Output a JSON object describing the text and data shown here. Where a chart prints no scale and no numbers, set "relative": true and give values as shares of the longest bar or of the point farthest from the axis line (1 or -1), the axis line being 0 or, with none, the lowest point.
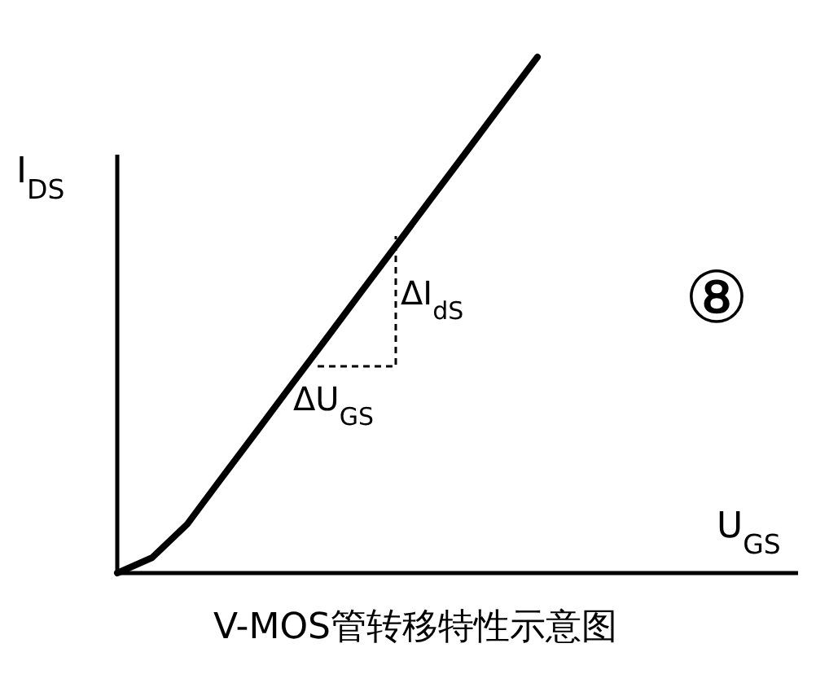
{
  "chart_data": {
    "type": "line",
    "title": "V-MOS管转移特性示意图",
    "xlabel": "U$_{GS}$",
    "ylabel": "I$_{DS}$",
    "categories": [
      null,
      null,
      null,
      null,
      null,
      null,
      null,
      null,
      null,
      null,
      null,
      null,
      null
    ],
    "relative": true,
    "series": [
      {
        "color": "#000000",
        "values": [
          0,
          0.03,
          0.095,
          0.186,
          0.276,
          0.367,
          0.457,
          0.548,
          0.638,
          0.729,
          0.819,
          0.91,
          1
        ]
      }
    ],
    "annotations": [
      "ΔI$_{dS}$",
      "ΔU$_{GS}$",
      "⑧"
    ]
  }
}
